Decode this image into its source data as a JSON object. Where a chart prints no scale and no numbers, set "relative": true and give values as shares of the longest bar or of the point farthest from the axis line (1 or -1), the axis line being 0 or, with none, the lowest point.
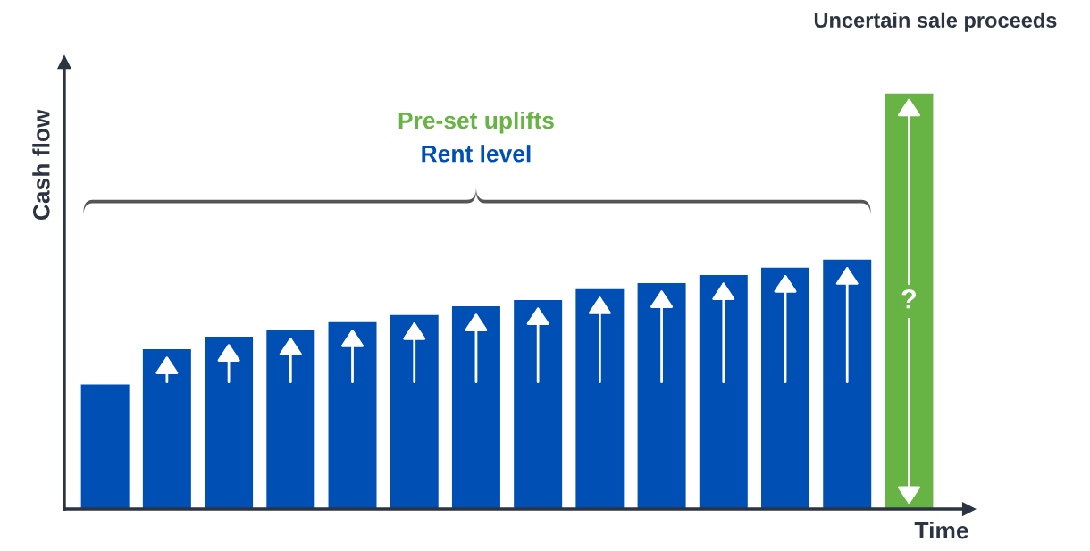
{
  "chart_data": {
    "type": "bar",
    "relative": true,
    "xlabel": "Time",
    "ylabel": "Cash flow",
    "categories": [
      null,
      null,
      null,
      null,
      null,
      null,
      null,
      null,
      null,
      null,
      null,
      null,
      null,
      null
    ],
    "values": [
      0.3,
      0.385,
      0.415,
      0.43,
      0.45,
      0.467,
      0.488,
      0.503,
      0.529,
      0.544,
      0.563,
      0.581,
      0.6,
      1
    ],
    "colors": [
      "#004fb5",
      "#004fb5",
      "#004fb5",
      "#004fb5",
      "#004fb5",
      "#004fb5",
      "#004fb5",
      "#004fb5",
      "#004fb5",
      "#004fb5",
      "#004fb5",
      "#004fb5",
      "#004fb5",
      "#67b445"
    ],
    "annotations": [
      "Pre-set uplifts",
      "Rent level",
      "Uncertain sale proceeds",
      "?"
    ],
    "tick_labels": false,
    "grid": false,
    "legend": false
  }
}
